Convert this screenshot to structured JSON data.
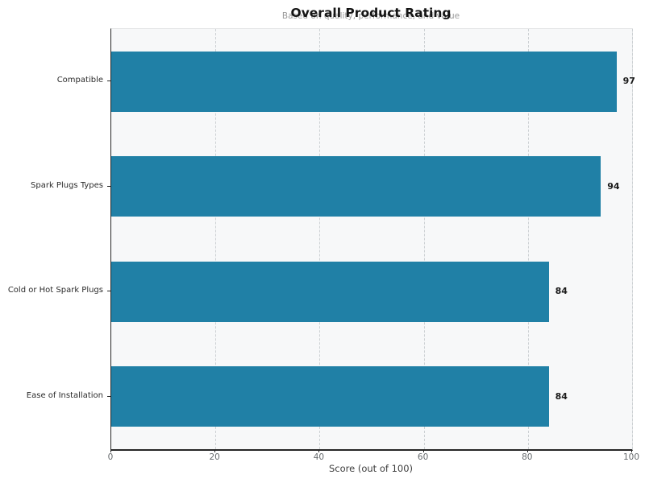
{
  "chart_data": {
    "type": "bar",
    "orientation": "horizontal",
    "title": "Overall Product Rating",
    "subtitle": "Based on quality, performance, and value",
    "xlabel": "Score (out of 100)",
    "categories": [
      "Compatible",
      "Spark Plugs Types",
      "Cold or Hot Spark Plugs",
      "Ease of Installation"
    ],
    "values": [
      97,
      94,
      84,
      84
    ],
    "value_labels": [
      "97",
      "94",
      "84",
      "84"
    ],
    "xlim": [
      0,
      100
    ],
    "xticks": [
      0,
      20,
      40,
      60,
      80,
      100
    ],
    "grid": "vertical-dashed",
    "legend": "none",
    "colors": {
      "bar": "#2080A6",
      "plot_background": "#f7f8f9",
      "gridline": "#cdd1d4",
      "title_text": "#141414",
      "subtitle_text": "#9a9a9a",
      "tick_text": "#666a6d",
      "category_text": "#2b2b2b",
      "value_text": "#1a1a1a"
    }
  }
}
